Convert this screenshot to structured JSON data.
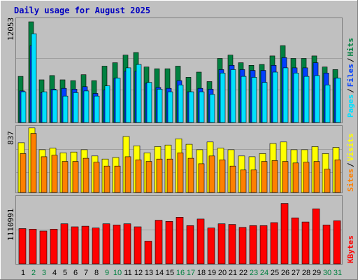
{
  "title": "Daily usage for August 2025",
  "colors": {
    "background": "#c0c0c0",
    "title": "#0000c0",
    "hits": "#008040",
    "files": "#0040ff",
    "pages": "#00e0ff",
    "visits": "#ffff00",
    "sites": "#ff8000",
    "kbytes": "#ff0000",
    "weekend_day_label": "#008040",
    "weekday_day_label": "#000000"
  },
  "panel_labels": {
    "top_max": "12053",
    "middle_max": "837",
    "bottom_max": "1110991",
    "right_hits": "Hits",
    "right_files": "Files",
    "right_pages": "Pages",
    "right_visits": "Visits",
    "right_sites": "Sites",
    "right_kbytes": "KBytes",
    "sep": "/"
  },
  "chart_data": {
    "type": "bar",
    "title": "Daily usage for August 2025",
    "categories": [
      "1",
      "2",
      "3",
      "4",
      "5",
      "6",
      "7",
      "8",
      "9",
      "10",
      "11",
      "12",
      "13",
      "14",
      "15",
      "16",
      "17",
      "18",
      "19",
      "20",
      "21",
      "22",
      "23",
      "24",
      "25",
      "26",
      "27",
      "28",
      "29",
      "30",
      "31"
    ],
    "weekend_days": [
      "2",
      "3",
      "9",
      "10",
      "16",
      "17",
      "23",
      "24",
      "30",
      "31"
    ],
    "panels": [
      {
        "ymax": 12053,
        "max_label": "12053",
        "series": [
          {
            "name": "Hits",
            "values": [
              5400,
              11800,
              5000,
              5500,
              5000,
              4900,
              5600,
              4900,
              6600,
              7000,
              7900,
              8200,
              6500,
              6300,
              6300,
              6600,
              5300,
              5900,
              4800,
              7500,
              7900,
              7000,
              6700,
              6800,
              7800,
              9000,
              7500,
              7500,
              7800,
              6500,
              6200
            ]
          },
          {
            "name": "Files",
            "values": [
              3700,
              9000,
              3500,
              3900,
              4000,
              3900,
              4200,
              3400,
              3800,
              5200,
              6000,
              6000,
              4600,
              4100,
              4000,
              4900,
              3600,
              4000,
              3900,
              6200,
              6700,
              6200,
              6100,
              6100,
              6700,
              7600,
              6400,
              6400,
              7000,
              5800,
              5200
            ]
          },
          {
            "name": "Pages",
            "values": [
              3600,
              10400,
              3600,
              3800,
              3100,
              3500,
              3700,
              3100,
              4300,
              5200,
              6400,
              6800,
              4700,
              3900,
              3600,
              4400,
              3600,
              3600,
              3300,
              5800,
              6200,
              5400,
              5300,
              4700,
              5900,
              6400,
              5800,
              5400,
              5500,
              4400,
              5200
            ]
          }
        ]
      },
      {
        "ymax": 837,
        "max_label": "837",
        "series": [
          {
            "name": "Visits",
            "values": [
              640,
              830,
              550,
              570,
              510,
              520,
              550,
              470,
              430,
              450,
              720,
              600,
              510,
              590,
              610,
              690,
              620,
              550,
              650,
              570,
              550,
              470,
              460,
              500,
              630,
              650,
              550,
              550,
              590,
              500,
              580
            ]
          },
          {
            "name": "Sites",
            "values": [
              500,
              760,
              460,
              480,
              400,
              400,
              440,
              390,
              340,
              340,
              460,
              420,
              400,
              430,
              430,
              510,
              440,
              370,
              470,
              420,
              340,
              290,
              290,
              400,
              410,
              400,
              380,
              390,
              400,
              300,
              420
            ]
          }
        ]
      },
      {
        "ymax": 1110991,
        "max_label": "1110991",
        "series": [
          {
            "name": "KBytes",
            "values": [
              590000,
              580000,
              550000,
              580000,
              670000,
              620000,
              630000,
              600000,
              670000,
              650000,
              670000,
              620000,
              380000,
              730000,
              710000,
              780000,
              640000,
              750000,
              600000,
              670000,
              660000,
              610000,
              640000,
              640000,
              690000,
              1010000,
              770000,
              700000,
              920000,
              650000,
              720000
            ]
          }
        ]
      }
    ]
  }
}
